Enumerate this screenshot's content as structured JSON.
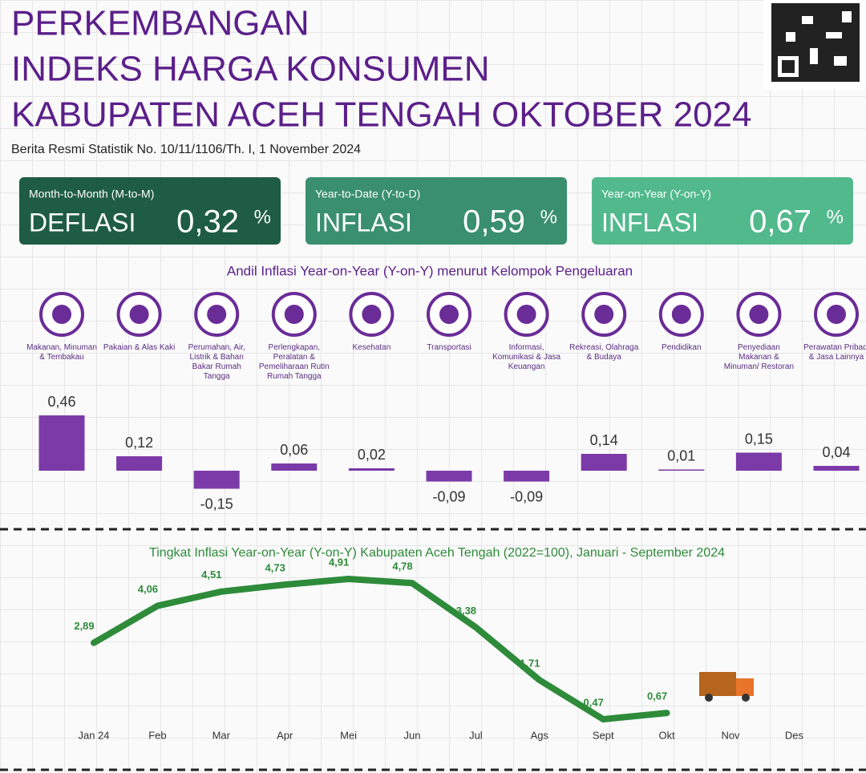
{
  "header": {
    "title": [
      "PERKEMBANGAN",
      "INDEKS HARGA KONSUMEN",
      "KABUPATEN ACEH TENGAH OKTOBER 2024"
    ],
    "subtitle": "Berita Resmi Statistik No. 10/11/1106/Th. I, 1 November 2024"
  },
  "cards": [
    {
      "label": "Month-to-Month (M-to-M)",
      "status": "DEFLASI",
      "value": "0,32",
      "unit": "%"
    },
    {
      "label": "Year-to-Date (Y-to-D)",
      "status": "INFLASI",
      "value": "0,59",
      "unit": "%"
    },
    {
      "label": "Year-on-Year (Y-on-Y)",
      "status": "INFLASI",
      "value": "0,67",
      "unit": "%"
    }
  ],
  "chart_data": [
    {
      "type": "bar",
      "title": "Andil Inflasi Year-on-Year (Y-on-Y) menurut Kelompok Pengeluaran",
      "categories": [
        "Makanan, Minuman & Tembakau",
        "Pakaian & Alas Kaki",
        "Perumahan, Air, Listrik & Bahan Bakar Rumah Tangga",
        "Perlengkapan, Peralatan & Pemeliharaan Rutin Rumah Tangga",
        "Kesehatan",
        "Transportasi",
        "Informasi, Komunikasi & Jasa Keuangan",
        "Rekreasi, Olahraga & Budaya",
        "Pendidikan",
        "Penyediaan Makanan & Minuman/ Restoran",
        "Perawatan Pribadi & Jasa Lainnya"
      ],
      "values": [
        0.46,
        0.12,
        -0.15,
        0.06,
        0.02,
        -0.09,
        -0.09,
        0.14,
        0.01,
        0.15,
        0.04
      ],
      "value_labels": [
        "0,46",
        "0,12",
        "-0,15",
        "0,06",
        "0,02",
        "-0,09",
        "-0,09",
        "0,14",
        "0,01",
        "0,15",
        "0,04"
      ],
      "color": "#7b3aa8"
    },
    {
      "type": "line",
      "title": "Tingkat Inflasi Year-on-Year (Y-on-Y) Kabupaten Aceh Tengah (2022=100), Januari - September 2024",
      "categories": [
        "Jan 24",
        "Feb",
        "Mar",
        "Apr",
        "Mei",
        "Jun",
        "Jul",
        "Ags",
        "Sept",
        "Okt",
        "Nov",
        "Des"
      ],
      "values": [
        2.89,
        4.06,
        4.51,
        4.73,
        4.91,
        4.78,
        3.38,
        1.71,
        0.47,
        0.67,
        null,
        null
      ],
      "value_labels": [
        "2,89",
        "4,06",
        "4,51",
        "4,73",
        "4,91",
        "4,78",
        "3,38",
        "1,71",
        "0,47",
        "0,67",
        null,
        null
      ],
      "color": "#2e8b3a"
    }
  ]
}
